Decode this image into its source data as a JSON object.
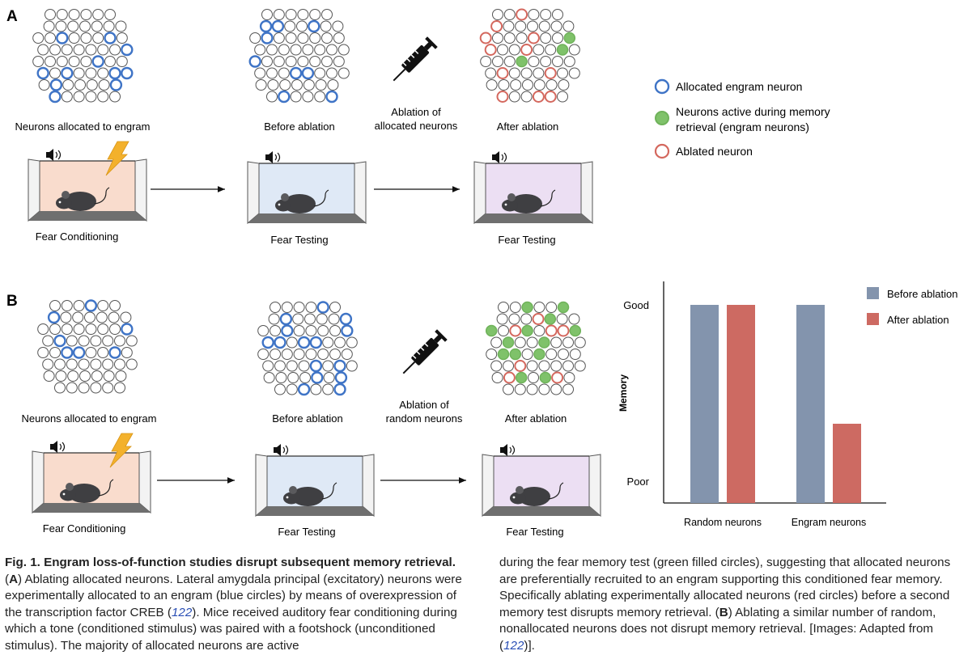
{
  "panel_a": {
    "letter": "A",
    "neurons_label": "Neurons allocated to engram",
    "before_label": "Before ablation",
    "ablation_label_1": "Ablation of",
    "ablation_label_2": "allocated neurons",
    "after_label": "After ablation",
    "conditioning_label": "Fear Conditioning",
    "testing_label_1": "Fear Testing",
    "testing_label_2": "Fear Testing"
  },
  "legend": {
    "allocated": "Allocated engram neuron",
    "active_1": "Neurons active during memory",
    "active_2": "retrieval (engram neurons)",
    "ablated": "Ablated neuron"
  },
  "panel_b": {
    "letter": "B",
    "neurons_label": "Neurons allocated to engram",
    "before_label": "Before ablation",
    "ablation_label_1": "Ablation of",
    "ablation_label_2": "random neurons",
    "after_label": "After ablation",
    "conditioning_label": "Fear Conditioning",
    "testing_label_1": "Fear Testing",
    "testing_label_2": "Fear Testing"
  },
  "colors": {
    "allocated": "#3f74c6",
    "active": "#7fc26a",
    "ablated": "#d4685e",
    "before_bar": "#8394ad",
    "after_bar": "#cd6a62",
    "conditioning_box": "#f9dccd",
    "testing_box_1": "#dfe9f6",
    "testing_box_2": "#ecdff3",
    "bolt": "#f3b12c",
    "mouse": "#3f3f42"
  },
  "chart_data": {
    "type": "bar",
    "categories": [
      "Random neurons",
      "Engram neurons"
    ],
    "series": [
      {
        "name": "Before ablation",
        "values": [
          1.0,
          1.0
        ]
      },
      {
        "name": "After ablation",
        "values": [
          1.0,
          0.4
        ]
      }
    ],
    "ylabel": "Memory",
    "yticks": [
      "Good",
      "Poor"
    ],
    "ylim": [
      0,
      1
    ],
    "legend_position": "top-right"
  },
  "caption": {
    "title": "Fig. 1. Engram loss-of-function studies disrupt subsequent memory retrieval.",
    "p1": " (",
    "a": "A",
    "p2": ") Ablating allocated neurons. Lateral amygdala principal (excitatory) neurons were experimentally allocated to an engram (blue circles) by means of overexpression of the transcription factor CREB (",
    "ref1": "122",
    "p3": "). Mice received auditory fear conditioning during which a tone (conditioned stimulus) was paired with a footshock (unconditioned stimulus). The majority of allocated neurons are active",
    "r1": "during the fear memory test (green filled circles), suggesting that allocated neurons are preferentially recruited to an engram supporting this conditioned fear memory. Specifically ablating experimentally allocated neurons (red circles) before a second memory test disrupts memory retrieval. (",
    "b": "B",
    "r2": ") Ablating a similar number of random, nonallocated neurons does not disrupt memory retrieval. [Images: Adapted from (",
    "ref2": "122",
    "r3": ")]."
  }
}
